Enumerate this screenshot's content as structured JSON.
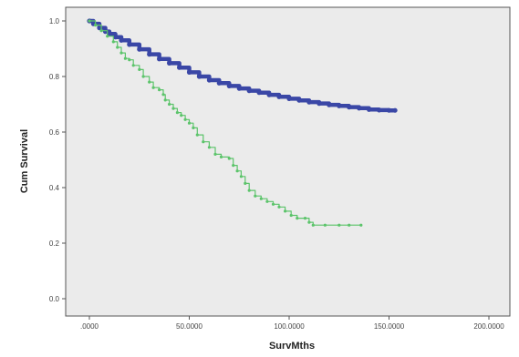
{
  "chart_data": {
    "type": "line",
    "xlabel": "SurvMths",
    "ylabel": "Cum Survival",
    "xlim": [
      0,
      200
    ],
    "ylim": [
      0,
      1
    ],
    "x_ticks": [
      0,
      50,
      100,
      150,
      200
    ],
    "x_tick_labels": [
      ".0000",
      "50.0000",
      "100.0000",
      "150.0000",
      "200.0000"
    ],
    "y_ticks": [
      0,
      0.2,
      0.4,
      0.6,
      0.8,
      1.0
    ],
    "y_tick_labels": [
      "0.0",
      "0.2",
      "0.4",
      "0.6",
      "0.8",
      "1.0"
    ],
    "grid": false,
    "colors": {
      "plot_background": "#ebebeb",
      "axis": "#555555"
    },
    "series": [
      {
        "color": "#3a47a6",
        "points": [
          [
            0,
            1.0
          ],
          [
            2,
            0.99
          ],
          [
            5,
            0.975
          ],
          [
            8,
            0.962
          ],
          [
            10,
            0.953
          ],
          [
            13,
            0.942
          ],
          [
            16,
            0.93
          ],
          [
            20,
            0.915
          ],
          [
            25,
            0.898
          ],
          [
            30,
            0.88
          ],
          [
            35,
            0.863
          ],
          [
            40,
            0.848
          ],
          [
            45,
            0.832
          ],
          [
            50,
            0.815
          ],
          [
            55,
            0.8
          ],
          [
            60,
            0.787
          ],
          [
            65,
            0.776
          ],
          [
            70,
            0.766
          ],
          [
            75,
            0.757
          ],
          [
            80,
            0.749
          ],
          [
            85,
            0.742
          ],
          [
            90,
            0.734
          ],
          [
            95,
            0.727
          ],
          [
            100,
            0.72
          ],
          [
            105,
            0.714
          ],
          [
            110,
            0.708
          ],
          [
            115,
            0.703
          ],
          [
            120,
            0.698
          ],
          [
            125,
            0.694
          ],
          [
            130,
            0.69
          ],
          [
            135,
            0.686
          ],
          [
            140,
            0.681
          ],
          [
            145,
            0.679
          ],
          [
            150,
            0.678
          ],
          [
            153,
            0.678
          ]
        ]
      },
      {
        "color": "#5cc46b",
        "points": [
          [
            0,
            1.0
          ],
          [
            3,
            0.985
          ],
          [
            6,
            0.965
          ],
          [
            9,
            0.945
          ],
          [
            12,
            0.925
          ],
          [
            14,
            0.905
          ],
          [
            16,
            0.885
          ],
          [
            18,
            0.865
          ],
          [
            20,
            0.86
          ],
          [
            22,
            0.84
          ],
          [
            25,
            0.825
          ],
          [
            27,
            0.8
          ],
          [
            30,
            0.78
          ],
          [
            32,
            0.76
          ],
          [
            35,
            0.752
          ],
          [
            37,
            0.735
          ],
          [
            38,
            0.715
          ],
          [
            40,
            0.7
          ],
          [
            42,
            0.685
          ],
          [
            44,
            0.67
          ],
          [
            46,
            0.66
          ],
          [
            48,
            0.645
          ],
          [
            50,
            0.632
          ],
          [
            52,
            0.615
          ],
          [
            54,
            0.59
          ],
          [
            57,
            0.565
          ],
          [
            60,
            0.545
          ],
          [
            63,
            0.52
          ],
          [
            66,
            0.51
          ],
          [
            70,
            0.505
          ],
          [
            72,
            0.48
          ],
          [
            74,
            0.46
          ],
          [
            76,
            0.44
          ],
          [
            78,
            0.415
          ],
          [
            80,
            0.39
          ],
          [
            83,
            0.37
          ],
          [
            86,
            0.36
          ],
          [
            89,
            0.35
          ],
          [
            92,
            0.34
          ],
          [
            95,
            0.33
          ],
          [
            98,
            0.315
          ],
          [
            101,
            0.3
          ],
          [
            104,
            0.29
          ],
          [
            108,
            0.29
          ],
          [
            110,
            0.275
          ],
          [
            112,
            0.265
          ],
          [
            118,
            0.265
          ],
          [
            125,
            0.265
          ],
          [
            130,
            0.265
          ],
          [
            136,
            0.265
          ]
        ]
      }
    ]
  }
}
